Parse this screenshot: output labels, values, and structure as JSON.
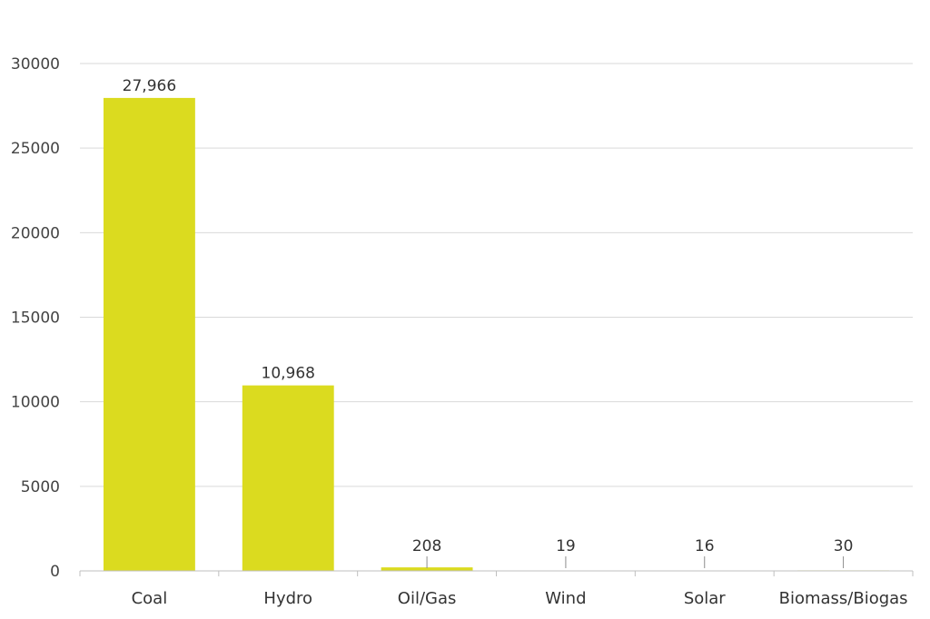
{
  "chart_data": {
    "type": "bar",
    "categories": [
      "Coal",
      "Hydro",
      "Oil/Gas",
      "Wind",
      "Solar",
      "Biomass/Biogas"
    ],
    "values": [
      27966,
      10968,
      208,
      19,
      16,
      30
    ],
    "data_labels": [
      "27,966",
      "10,968",
      "208",
      "19",
      "16",
      "30"
    ],
    "ylim": [
      0,
      30000
    ],
    "yticks": [
      0,
      5000,
      10000,
      15000,
      20000,
      25000,
      30000
    ],
    "ytick_labels": [
      "0",
      "5000",
      "10000",
      "15000",
      "20000",
      "25000",
      "30000"
    ],
    "grid": true,
    "bar_color": "#dbdb1f",
    "title": "",
    "xlabel": "",
    "ylabel": ""
  }
}
